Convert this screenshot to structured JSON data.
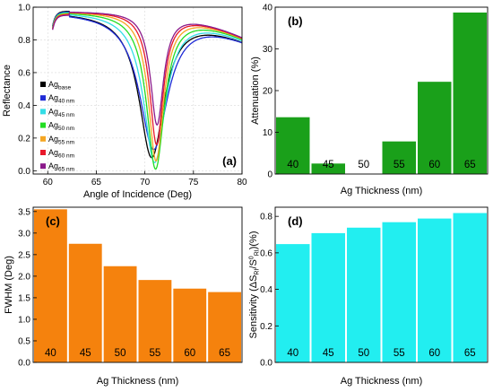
{
  "chart_data": [
    {
      "panel": "(a)",
      "type": "line",
      "xlabel": "Angle of Incidence (Deg)",
      "ylabel": "Reflectance",
      "xlim": [
        58.5,
        80
      ],
      "ylim": [
        -0.02,
        1.0
      ],
      "xticks": [
        "60",
        "65",
        "70",
        "75",
        "80"
      ],
      "yticks": [
        "0.0",
        "0.2",
        "0.4",
        "0.6",
        "0.8",
        "1.0"
      ],
      "grid": true,
      "legend_position": "center-left",
      "series": [
        {
          "name": "Ag",
          "sub": "base",
          "color": "#000000",
          "dip_angle": 70.7,
          "min_reflectance": 0.08,
          "fwhm": 3.2
        },
        {
          "name": "Ag",
          "sub": "40 nm",
          "color": "#1f2bd6",
          "dip_angle": 70.9,
          "min_reflectance": 0.13,
          "fwhm": 3.56
        },
        {
          "name": "Ag",
          "sub": "45 nm",
          "color": "#33dde6",
          "dip_angle": 71.0,
          "min_reflectance": 0.05,
          "fwhm": 2.76
        },
        {
          "name": "Ag",
          "sub": "50 nm",
          "color": "#22dd22",
          "dip_angle": 71.1,
          "min_reflectance": 0.01,
          "fwhm": 2.24
        },
        {
          "name": "Ag",
          "sub": "55 nm",
          "color": "#f5a623",
          "dip_angle": 71.15,
          "min_reflectance": 0.06,
          "fwhm": 1.92
        },
        {
          "name": "Ag",
          "sub": "60 nm",
          "color": "#e8182a",
          "dip_angle": 71.2,
          "min_reflectance": 0.16,
          "fwhm": 1.72
        },
        {
          "name": "Ag",
          "sub": "65 nm",
          "color": "#8b1a8b",
          "dip_angle": 71.25,
          "min_reflectance": 0.28,
          "fwhm": 1.64
        }
      ]
    },
    {
      "panel": "(b)",
      "type": "bar",
      "xlabel": "Ag Thickness (nm)",
      "ylabel": "Attenuation (%)",
      "ylim": [
        0,
        40
      ],
      "yticks": [
        "0",
        "10",
        "20",
        "30",
        "40"
      ],
      "bar_color": "#1aa01a",
      "categories": [
        "40",
        "45",
        "50",
        "55",
        "60",
        "65"
      ],
      "values": [
        13.7,
        2.6,
        0.0,
        7.9,
        22.2,
        38.8
      ]
    },
    {
      "panel": "(c)",
      "type": "bar",
      "xlabel": "Ag Thickness (nm)",
      "ylabel": "FWHM (Deg)",
      "ylim": [
        0,
        3.6
      ],
      "yticks": [
        "0.0",
        "0.5",
        "1.0",
        "1.5",
        "2.0",
        "2.5",
        "3.0",
        "3.5"
      ],
      "bar_color": "#f5820d",
      "categories": [
        "40",
        "45",
        "50",
        "55",
        "60",
        "65"
      ],
      "values": [
        3.56,
        2.76,
        2.24,
        1.92,
        1.72,
        1.64
      ]
    },
    {
      "panel": "(d)",
      "type": "bar",
      "xlabel": "Ag Thickness (nm)",
      "ylabel_parts": [
        "Sensitivity (ΔS",
        "RI",
        "/S",
        "0",
        "RI",
        ")(%)"
      ],
      "ylim": [
        0,
        0.85
      ],
      "yticks": [
        "0.0",
        "0.2",
        "0.4",
        "0.6",
        "0.8"
      ],
      "bar_color": "#22eef0",
      "categories": [
        "40",
        "45",
        "50",
        "55",
        "60",
        "65"
      ],
      "values": [
        0.65,
        0.71,
        0.74,
        0.77,
        0.79,
        0.82
      ]
    }
  ]
}
